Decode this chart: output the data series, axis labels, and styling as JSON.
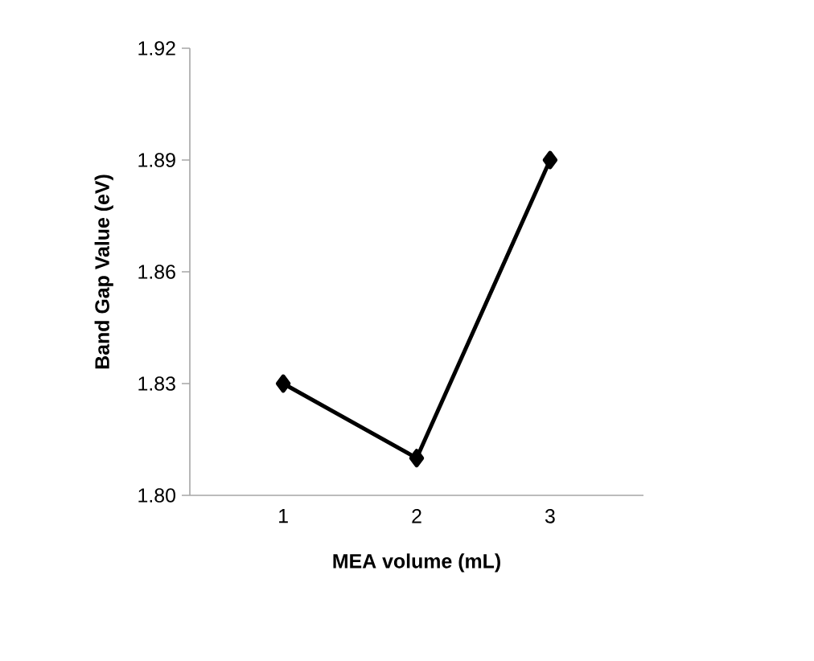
{
  "chart_data": {
    "type": "line",
    "xlabel": "MEA volume (mL)",
    "ylabel": "Band Gap Value (eV)",
    "categories": [
      "1",
      "2",
      "3"
    ],
    "values": [
      1.83,
      1.81,
      1.89
    ],
    "color": "#000000",
    "ylim": [
      1.8,
      1.92
    ],
    "yticks": [
      {
        "value": 1.8,
        "label": "1.80"
      },
      1.83,
      1.86,
      1.89,
      1.92
    ],
    "marker": "diamond",
    "line_style": "solid"
  }
}
